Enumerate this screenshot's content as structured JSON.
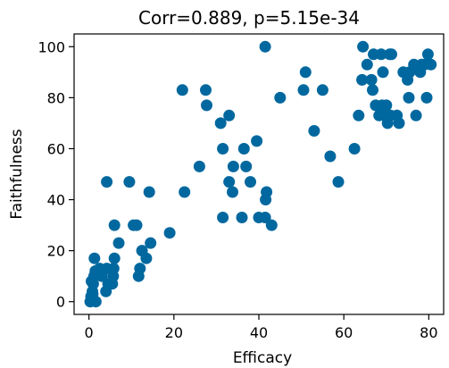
{
  "chart_data": {
    "type": "scatter",
    "title": "Corr=0.889, p=5.15e-34",
    "xlabel": "Efficacy",
    "ylabel": "Faithfulness",
    "xlim": [
      -3.5,
      83.5
    ],
    "ylim": [
      -5,
      105
    ],
    "xticks": [
      0,
      20,
      40,
      60,
      80
    ],
    "yticks": [
      0,
      20,
      40,
      60,
      80,
      100
    ],
    "grid": false,
    "color": "#00689f",
    "points": [
      [
        0.3,
        0
      ],
      [
        0.5,
        2
      ],
      [
        0.8,
        4
      ],
      [
        1.0,
        7
      ],
      [
        0.6,
        8
      ],
      [
        1.2,
        10
      ],
      [
        1.5,
        12
      ],
      [
        1.3,
        17
      ],
      [
        0.9,
        3
      ],
      [
        1.6,
        0
      ],
      [
        2.5,
        13
      ],
      [
        3.0,
        10
      ],
      [
        4.0,
        4
      ],
      [
        4.5,
        7
      ],
      [
        4.2,
        13
      ],
      [
        5.5,
        7
      ],
      [
        5.7,
        10
      ],
      [
        5.8,
        13
      ],
      [
        6.0,
        17
      ],
      [
        4.2,
        47
      ],
      [
        6.0,
        30
      ],
      [
        7.0,
        23
      ],
      [
        9.5,
        47
      ],
      [
        10.5,
        30
      ],
      [
        11.2,
        30
      ],
      [
        11.7,
        10
      ],
      [
        12.0,
        13
      ],
      [
        12.5,
        20
      ],
      [
        13.5,
        17
      ],
      [
        14.2,
        43
      ],
      [
        14.5,
        23
      ],
      [
        19.0,
        27
      ],
      [
        22.0,
        83
      ],
      [
        22.5,
        43
      ],
      [
        26.0,
        53
      ],
      [
        27.5,
        83
      ],
      [
        27.7,
        77
      ],
      [
        31.0,
        70
      ],
      [
        31.5,
        60
      ],
      [
        31.5,
        33
      ],
      [
        33.0,
        73
      ],
      [
        33.0,
        47
      ],
      [
        33.8,
        43
      ],
      [
        34.0,
        53
      ],
      [
        36.0,
        33
      ],
      [
        36.5,
        60
      ],
      [
        37.0,
        53
      ],
      [
        38.0,
        47
      ],
      [
        39.5,
        63
      ],
      [
        40.0,
        33
      ],
      [
        41.5,
        100
      ],
      [
        41.8,
        43
      ],
      [
        41.6,
        40
      ],
      [
        41.5,
        33
      ],
      [
        43.0,
        30
      ],
      [
        45.0,
        80
      ],
      [
        50.5,
        83
      ],
      [
        51.0,
        90
      ],
      [
        53.0,
        67
      ],
      [
        55.0,
        83
      ],
      [
        56.8,
        57
      ],
      [
        58.7,
        47
      ],
      [
        62.5,
        60
      ],
      [
        63.5,
        73
      ],
      [
        64.5,
        100
      ],
      [
        64.3,
        87
      ],
      [
        65.5,
        93
      ],
      [
        66.5,
        87
      ],
      [
        66.8,
        83
      ],
      [
        67.0,
        97
      ],
      [
        67.5,
        77
      ],
      [
        68.3,
        73
      ],
      [
        68.8,
        97
      ],
      [
        69.0,
        77
      ],
      [
        69.2,
        90
      ],
      [
        69.7,
        73
      ],
      [
        70.0,
        77
      ],
      [
        70.3,
        70
      ],
      [
        70.8,
        97
      ],
      [
        71.0,
        73
      ],
      [
        71.2,
        97
      ],
      [
        72.5,
        73
      ],
      [
        73.0,
        70
      ],
      [
        74.0,
        90
      ],
      [
        75.0,
        87
      ],
      [
        75.3,
        80
      ],
      [
        75.5,
        90
      ],
      [
        76.5,
        93
      ],
      [
        77.0,
        73
      ],
      [
        78.0,
        90
      ],
      [
        78.3,
        93
      ],
      [
        79.0,
        93
      ],
      [
        79.5,
        80
      ],
      [
        79.8,
        97
      ],
      [
        80.5,
        93
      ]
    ]
  }
}
